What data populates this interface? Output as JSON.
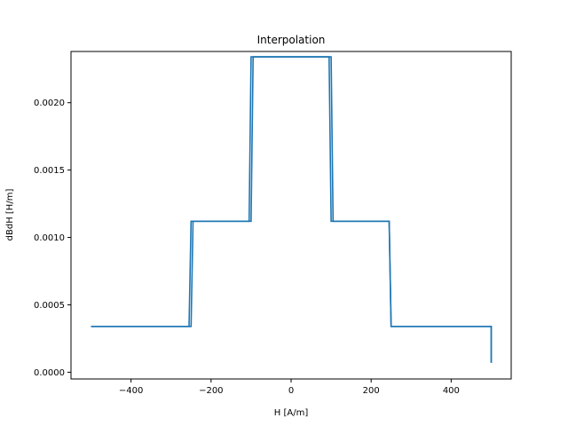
{
  "chart_data": {
    "type": "line",
    "title": "Interpolation",
    "xlabel": "H [A/m]",
    "ylabel": "dBdH [H/m]",
    "xlim": [
      -550,
      550
    ],
    "ylim": [
      -5e-05,
      0.00238
    ],
    "xticks": [
      {
        "value": -400,
        "label": "−400"
      },
      {
        "value": -200,
        "label": "−200"
      },
      {
        "value": 0,
        "label": "0"
      },
      {
        "value": 200,
        "label": "200"
      },
      {
        "value": 400,
        "label": "400"
      }
    ],
    "yticks": [
      {
        "value": 0.0,
        "label": "0.0000"
      },
      {
        "value": 0.0005,
        "label": "0.0005"
      },
      {
        "value": 0.001,
        "label": "0.0010"
      },
      {
        "value": 0.0015,
        "label": "0.0015"
      },
      {
        "value": 0.002,
        "label": "0.0020"
      }
    ],
    "grid": false,
    "color": "#1f77b4",
    "series": [
      {
        "x": [
          500,
          500,
          250,
          245,
          105,
          100,
          -95,
          -100,
          -245,
          -250,
          -500
        ],
        "y": [
          7e-05,
          0.00034,
          0.00034,
          0.00112,
          0.00112,
          0.00234,
          0.00234,
          0.00112,
          0.00112,
          0.00034,
          0.00034
        ]
      },
      {
        "x": [
          -500,
          -255,
          -250,
          -105,
          -100,
          95,
          100,
          245,
          250,
          500,
          500
        ],
        "y": [
          0.00034,
          0.00034,
          0.00112,
          0.00112,
          0.00234,
          0.00234,
          0.00112,
          0.00112,
          0.00034,
          0.00034,
          7e-05
        ]
      }
    ]
  }
}
